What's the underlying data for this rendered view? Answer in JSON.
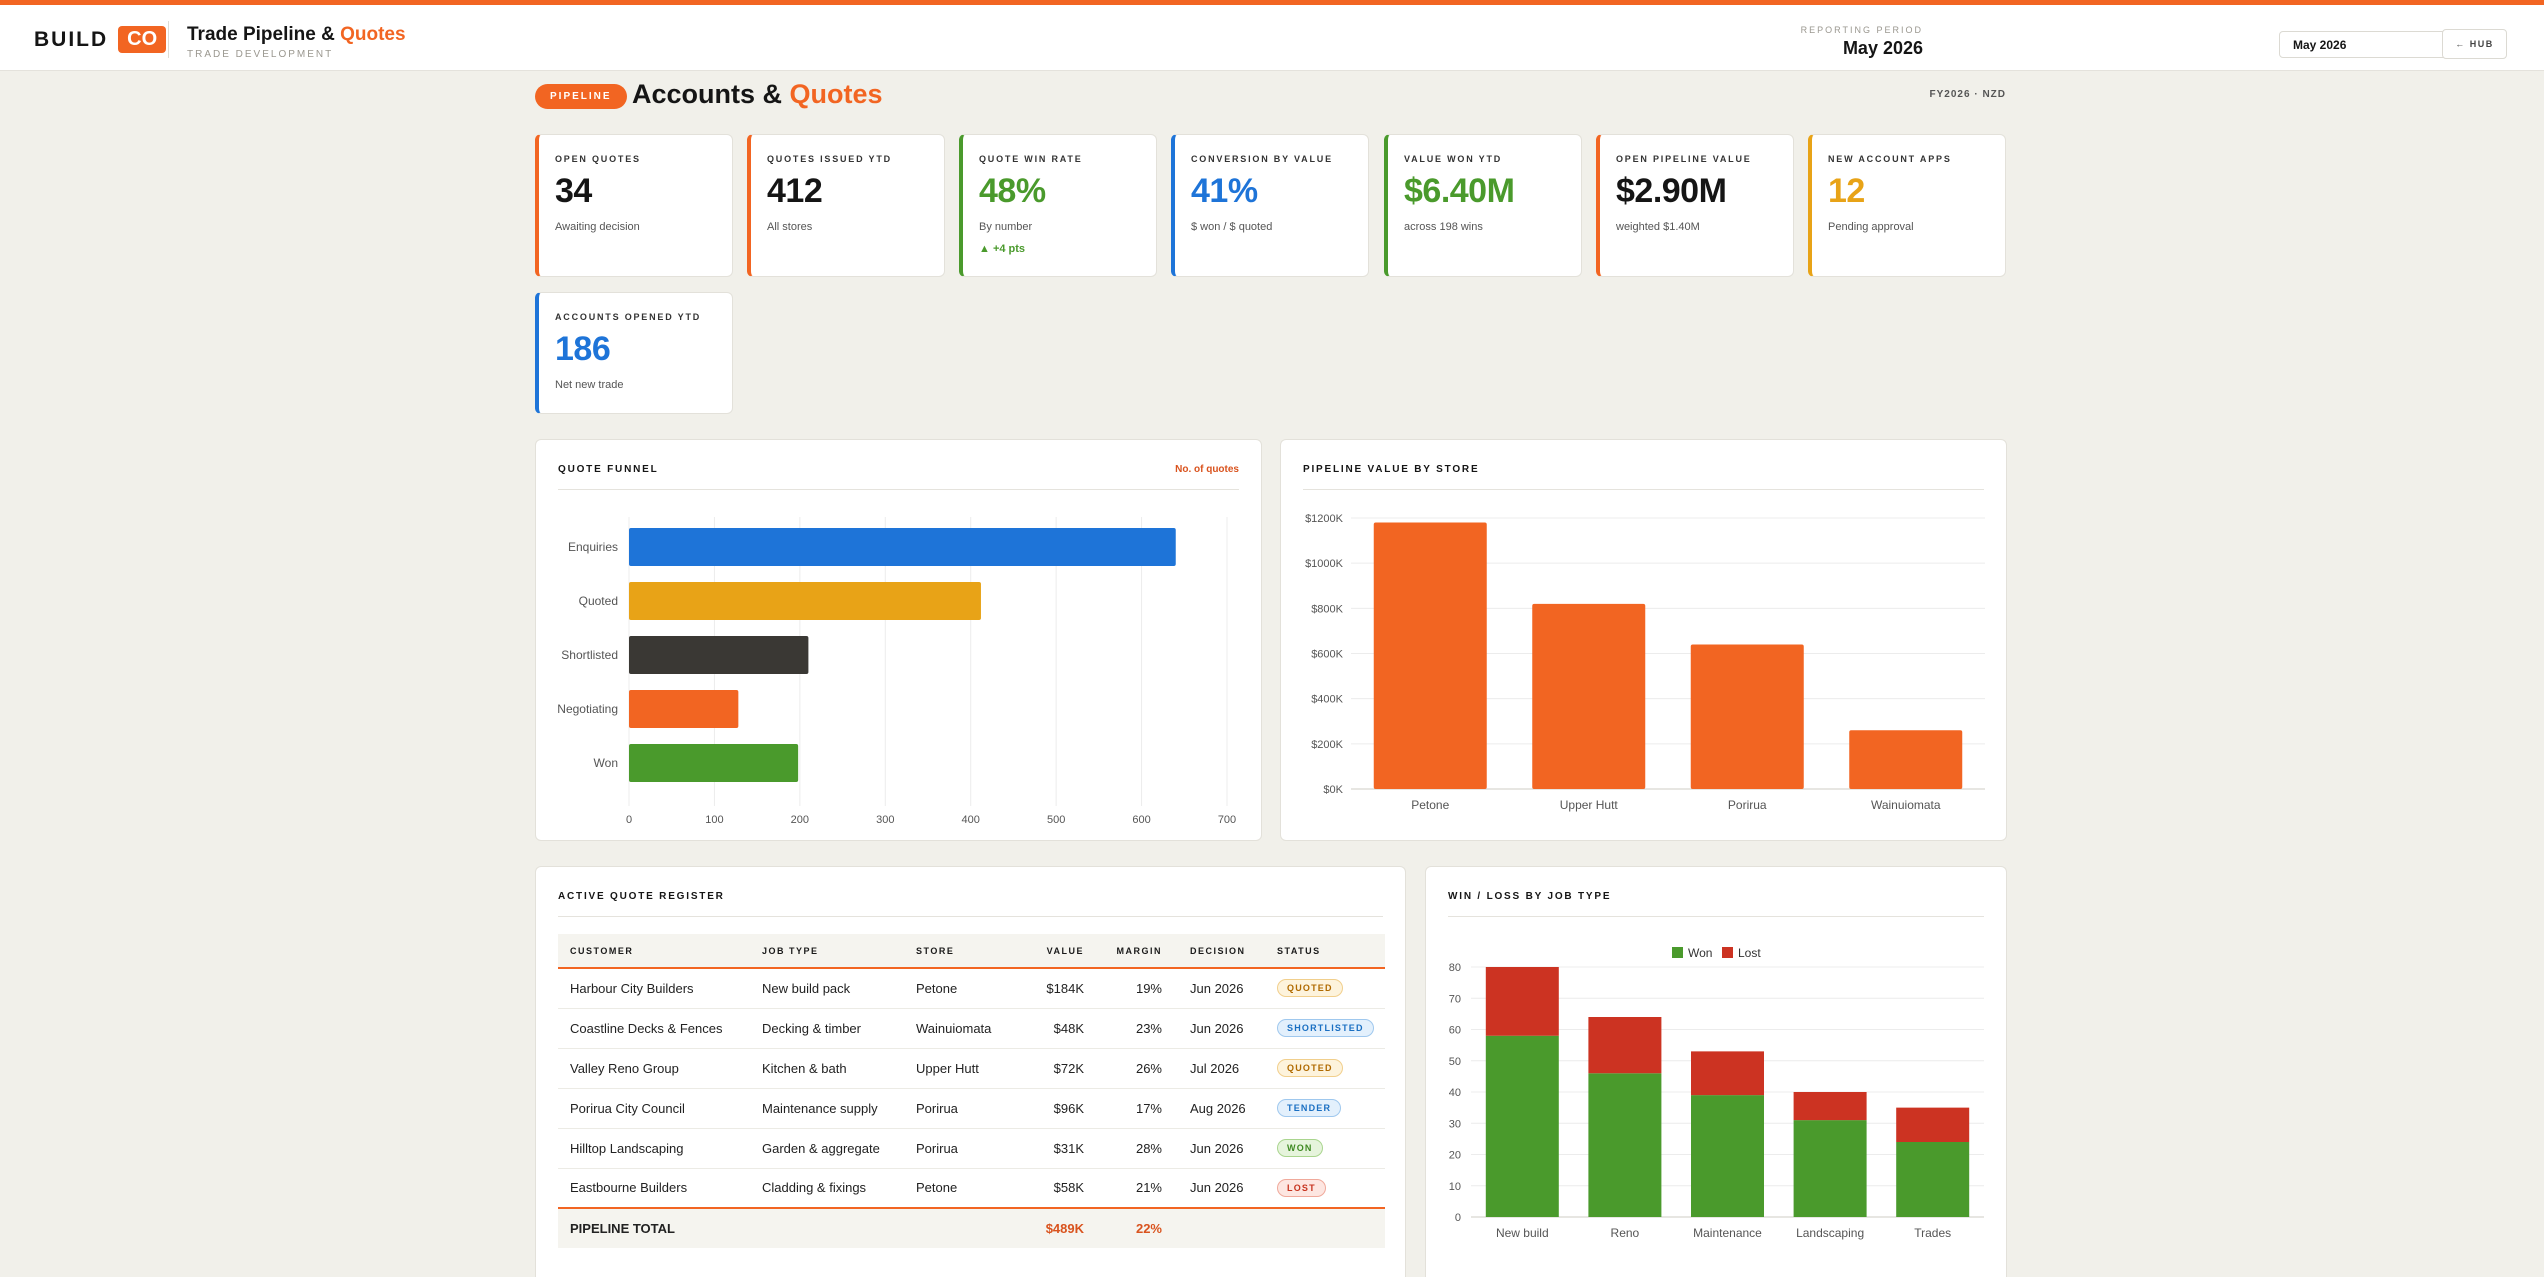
{
  "header": {
    "logo_word": "BUILD",
    "logo_badge": "CO",
    "title_main": "Trade Pipeline &",
    "title_accent": "Quotes",
    "subtitle": "TRADE DEVELOPMENT",
    "period_label": "REPORTING PERIOD",
    "period_value": "May 2026",
    "period_select": "May 2026",
    "hub_label": "← HUB"
  },
  "page": {
    "pill": "PIPELINE",
    "title_main": "Accounts &",
    "title_accent": "Quotes",
    "fy": "FY2026 · NZD"
  },
  "colors": {
    "accent": "#f26522",
    "blue": "#1e74d8",
    "amber": "#e8a317",
    "green": "#4a9a2c",
    "dark": "#3a3834",
    "red": "#cc3322"
  },
  "kpis": [
    {
      "label": "OPEN QUOTES",
      "value": "34",
      "sub": "Awaiting decision",
      "delta": "",
      "color": "#f26522",
      "value_color": "#151515"
    },
    {
      "label": "QUOTES ISSUED YTD",
      "value": "412",
      "sub": "All stores",
      "delta": "",
      "color": "#f26522",
      "value_color": "#151515"
    },
    {
      "label": "QUOTE WIN RATE",
      "value": "48%",
      "sub": "By number",
      "delta": "▲ +4 pts",
      "color": "#4a9a2c",
      "value_color": "#4a9a2c"
    },
    {
      "label": "CONVERSION BY VALUE",
      "value": "41%",
      "sub": "$ won / $ quoted",
      "delta": "",
      "color": "#1e74d8",
      "value_color": "#1e74d8"
    },
    {
      "label": "VALUE WON YTD",
      "value": "$6.40M",
      "sub": "across 198 wins",
      "delta": "",
      "color": "#4a9a2c",
      "value_color": "#4a9a2c"
    },
    {
      "label": "OPEN PIPELINE VALUE",
      "value": "$2.90M",
      "sub": "weighted $1.40M",
      "delta": "",
      "color": "#f26522",
      "value_color": "#151515"
    },
    {
      "label": "NEW ACCOUNT APPS",
      "value": "12",
      "sub": "Pending approval",
      "delta": "",
      "color": "#e8a317",
      "value_color": "#e8a317"
    },
    {
      "label": "ACCOUNTS OPENED YTD",
      "value": "186",
      "sub": "Net new trade",
      "delta": "",
      "color": "#1e74d8",
      "value_color": "#1e74d8"
    }
  ],
  "funnel": {
    "title": "QUOTE FUNNEL",
    "note": "No. of quotes"
  },
  "pipeline": {
    "title": "PIPELINE VALUE BY STORE"
  },
  "register": {
    "title": "ACTIVE QUOTE REGISTER",
    "columns": [
      "CUSTOMER",
      "JOB TYPE",
      "STORE",
      "VALUE",
      "MARGIN",
      "DECISION",
      "STATUS"
    ],
    "rows": [
      {
        "customer": "Harbour City Builders",
        "job": "New build pack",
        "store": "Petone",
        "value": "$184K",
        "margin": "19%",
        "decision": "Jun 2026",
        "status": "QUOTED"
      },
      {
        "customer": "Coastline Decks & Fences",
        "job": "Decking & timber",
        "store": "Wainuiomata",
        "value": "$48K",
        "margin": "23%",
        "decision": "Jun 2026",
        "status": "SHORTLISTED"
      },
      {
        "customer": "Valley Reno Group",
        "job": "Kitchen & bath",
        "store": "Upper Hutt",
        "value": "$72K",
        "margin": "26%",
        "decision": "Jul 2026",
        "status": "QUOTED"
      },
      {
        "customer": "Porirua City Council",
        "job": "Maintenance supply",
        "store": "Porirua",
        "value": "$96K",
        "margin": "17%",
        "decision": "Aug 2026",
        "status": "TENDER"
      },
      {
        "customer": "Hilltop Landscaping",
        "job": "Garden & aggregate",
        "store": "Porirua",
        "value": "$31K",
        "margin": "28%",
        "decision": "Jun 2026",
        "status": "WON"
      },
      {
        "customer": "Eastbourne Builders",
        "job": "Cladding & fixings",
        "store": "Petone",
        "value": "$58K",
        "margin": "21%",
        "decision": "Jun 2026",
        "status": "LOST"
      }
    ],
    "total": {
      "label": "PIPELINE TOTAL",
      "value": "$489K",
      "margin": "22%"
    }
  },
  "winloss": {
    "title": "WIN / LOSS BY JOB TYPE"
  },
  "chart_data": [
    {
      "type": "bar",
      "orientation": "horizontal",
      "title": "QUOTE FUNNEL",
      "note": "No. of quotes",
      "categories": [
        "Enquiries",
        "Quoted",
        "Shortlisted",
        "Negotiating",
        "Won"
      ],
      "values": [
        640,
        412,
        210,
        128,
        198
      ],
      "colors": [
        "#1e74d8",
        "#e8a317",
        "#3a3834",
        "#f26522",
        "#4a9a2c"
      ],
      "xlim": [
        0,
        700
      ],
      "xticks": [
        0,
        100,
        200,
        300,
        400,
        500,
        600,
        700
      ],
      "grid": true
    },
    {
      "type": "bar",
      "title": "PIPELINE VALUE BY STORE",
      "categories": [
        "Petone",
        "Upper Hutt",
        "Porirua",
        "Wainuiomata"
      ],
      "values": [
        1180,
        820,
        640,
        260
      ],
      "ylim": [
        0,
        1200
      ],
      "yticks": [
        "$0K",
        "$200K",
        "$400K",
        "$600K",
        "$800K",
        "$1000K",
        "$1200K"
      ],
      "color": "#f26522",
      "grid": true
    },
    {
      "type": "bar",
      "stacked": true,
      "title": "WIN / LOSS BY JOB TYPE",
      "categories": [
        "New build",
        "Reno",
        "Maintenance",
        "Landscaping",
        "Trades"
      ],
      "series": [
        {
          "name": "Won",
          "values": [
            58,
            46,
            39,
            31,
            24
          ],
          "color": "#4a9a2c"
        },
        {
          "name": "Lost",
          "values": [
            22,
            18,
            14,
            9,
            11
          ],
          "color": "#cc3322"
        }
      ],
      "ylim": [
        0,
        80
      ],
      "yticks": [
        0,
        10,
        20,
        30,
        40,
        50,
        60,
        70,
        80
      ],
      "legend": "top-center",
      "grid": true
    }
  ]
}
